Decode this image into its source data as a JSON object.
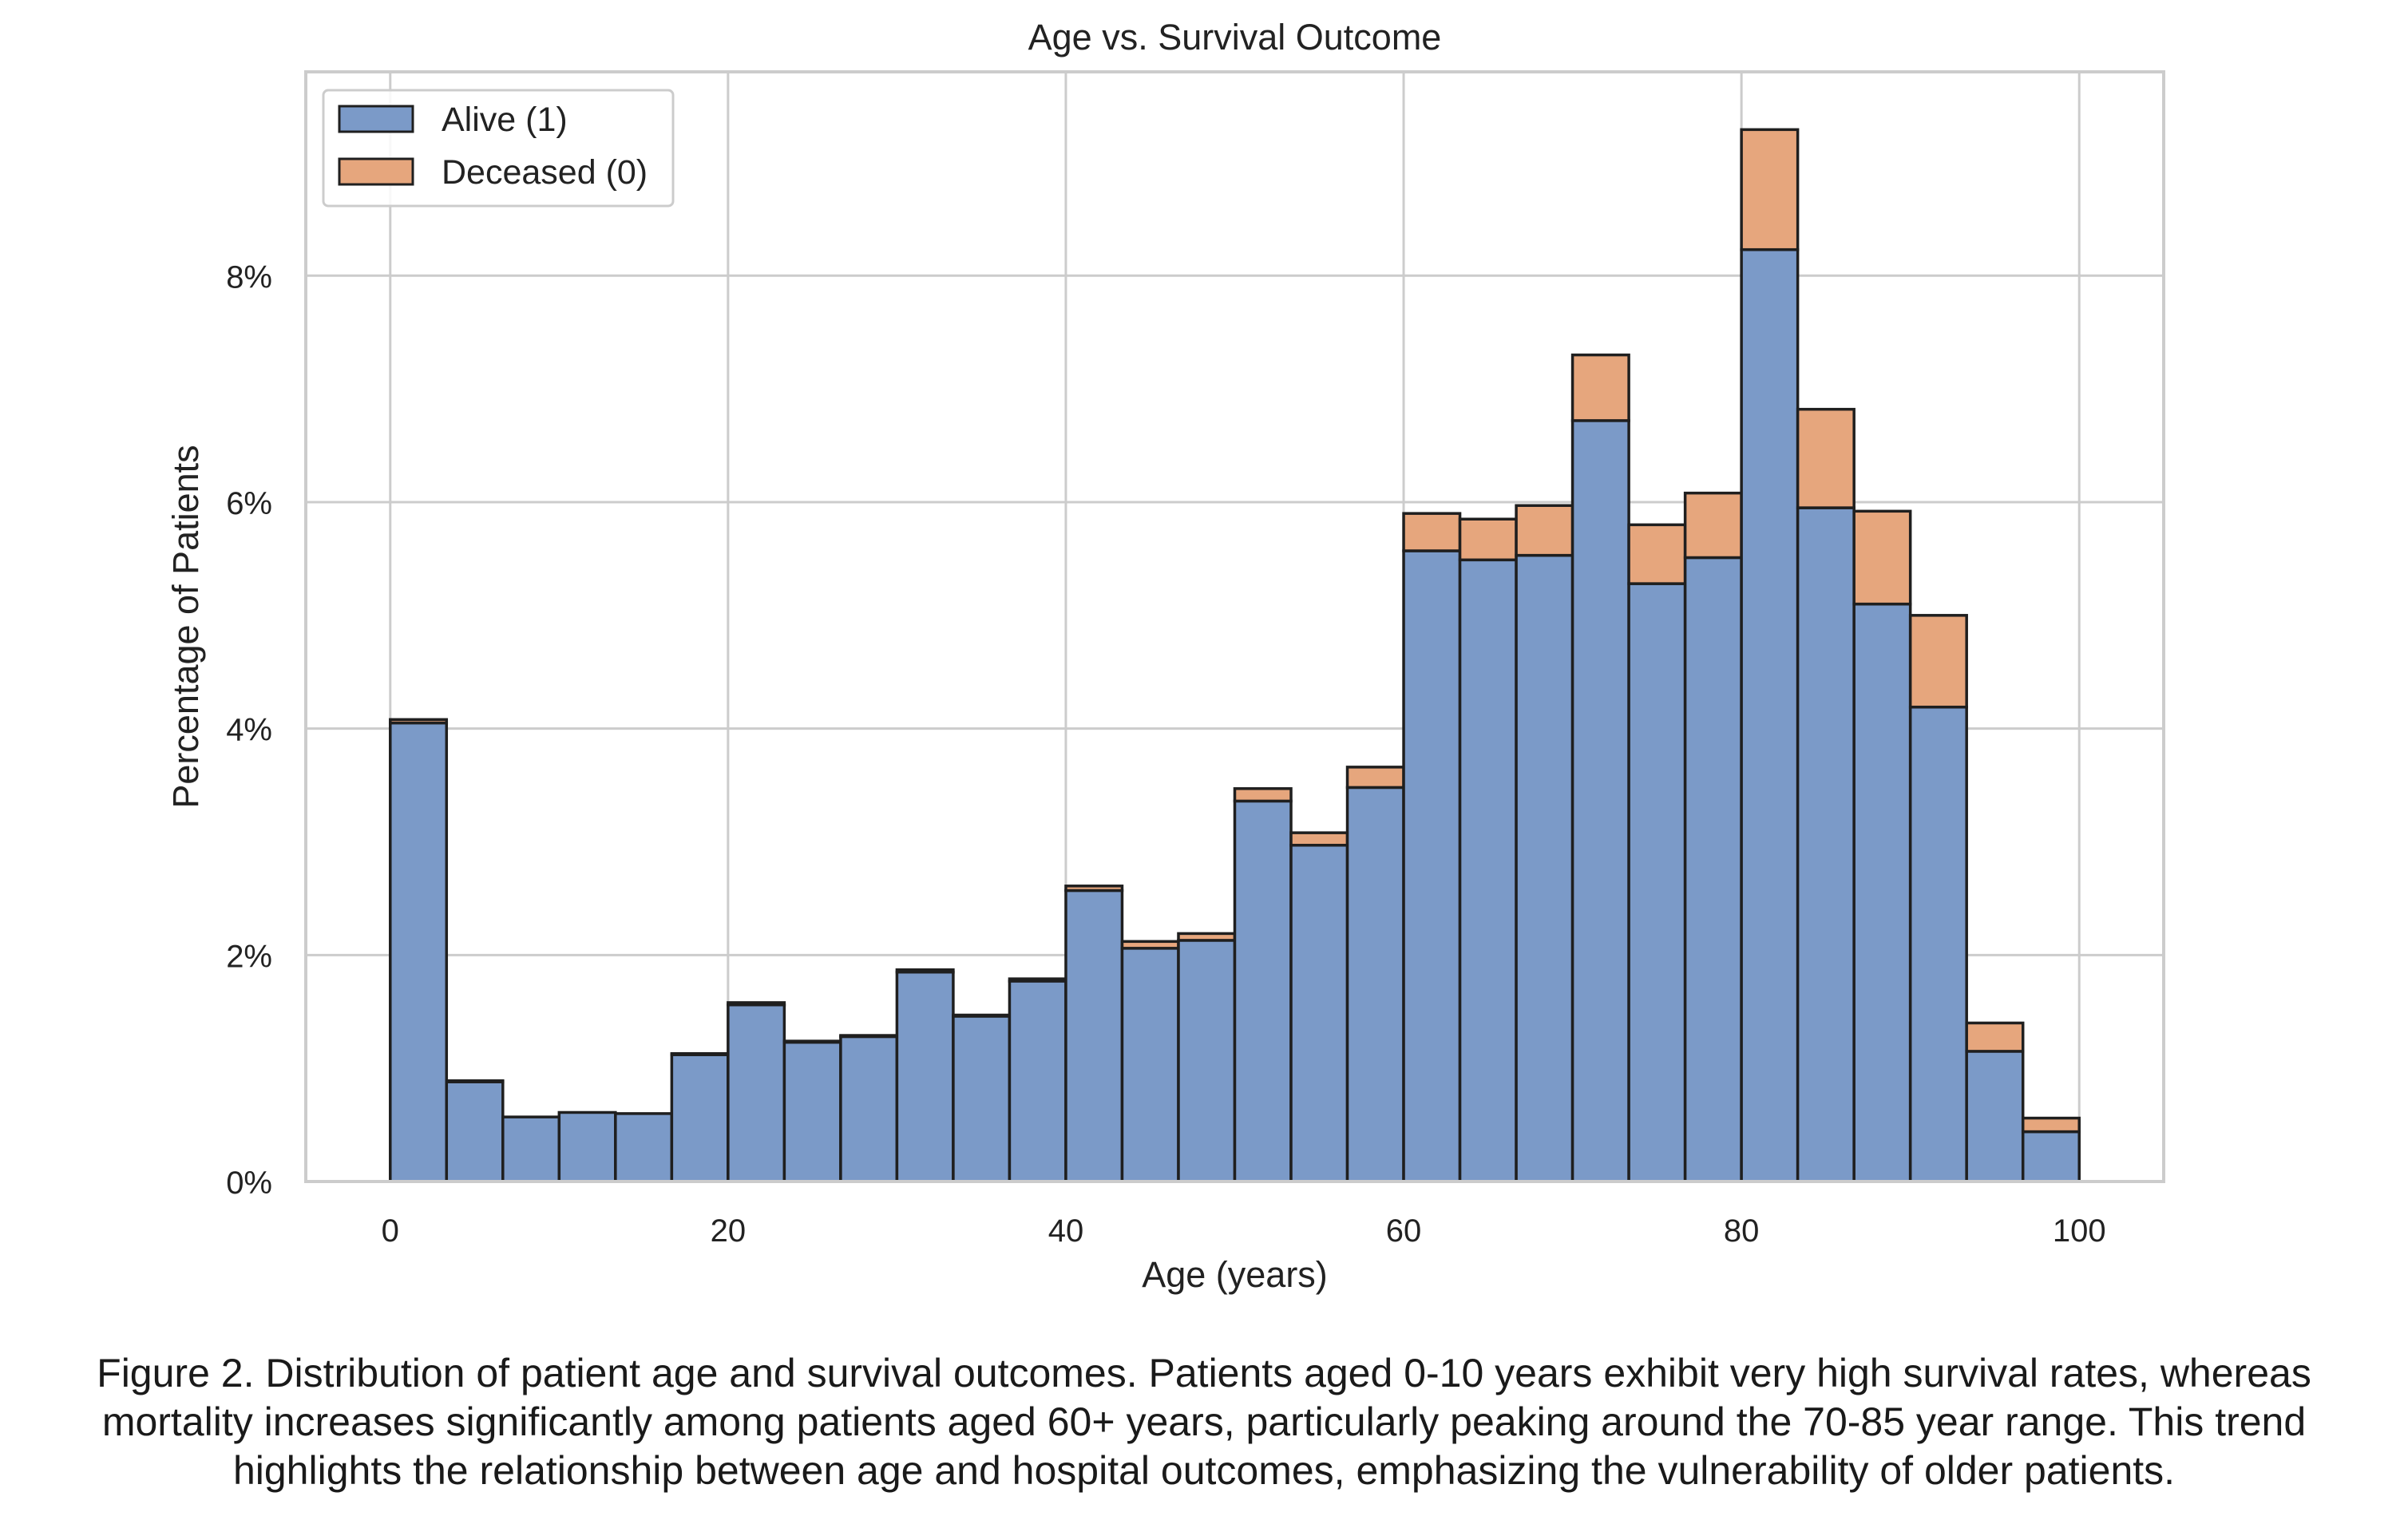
{
  "chart_data": {
    "type": "bar",
    "stacked": true,
    "title": "Age vs. Survival Outcome",
    "xlabel": "Age (years)",
    "ylabel": "Percentage of Patients",
    "xlim": [
      -5,
      105
    ],
    "ylim": [
      0,
      9.8
    ],
    "x_ticks": [
      0,
      20,
      40,
      60,
      80,
      100
    ],
    "x_tick_labels": [
      "0",
      "20",
      "40",
      "60",
      "80",
      "100"
    ],
    "y_ticks": [
      0,
      2,
      4,
      6,
      8
    ],
    "y_tick_labels": [
      "0%",
      "2%",
      "4%",
      "6%",
      "8%"
    ],
    "grid": true,
    "legend_position": "top-left",
    "bin_edges": [
      0,
      3.333,
      6.667,
      10,
      13.333,
      16.667,
      20,
      23.333,
      26.667,
      30,
      33.333,
      36.667,
      40,
      43.333,
      46.667,
      50,
      53.333,
      56.667,
      60,
      63.333,
      66.667,
      70,
      73.333,
      76.667,
      80,
      83.333,
      86.667,
      90,
      93.333,
      96.667,
      100
    ],
    "series": [
      {
        "name": "Alive (1)",
        "color": "#7b9ac8",
        "values": [
          4.05,
          0.88,
          0.57,
          0.61,
          0.6,
          1.12,
          1.56,
          1.23,
          1.28,
          1.85,
          1.46,
          1.77,
          2.57,
          2.06,
          2.13,
          3.36,
          2.97,
          3.48,
          5.57,
          5.49,
          5.53,
          6.72,
          5.28,
          5.51,
          8.23,
          5.95,
          5.1,
          4.19,
          1.15,
          0.44
        ]
      },
      {
        "name": "Deceased (0)",
        "color": "#e6a67d",
        "values": [
          0.03,
          0.01,
          0.0,
          0.0,
          0.0,
          0.01,
          0.02,
          0.01,
          0.01,
          0.02,
          0.01,
          0.02,
          0.04,
          0.06,
          0.06,
          0.11,
          0.11,
          0.18,
          0.33,
          0.36,
          0.44,
          0.58,
          0.52,
          0.57,
          1.06,
          0.87,
          0.82,
          0.81,
          0.25,
          0.12
        ]
      }
    ]
  },
  "caption": {
    "line1": "Figure 2. Distribution of patient age and survival outcomes. Patients aged 0-10 years exhibit very high survival rates, whereas",
    "line2": "mortality increases significantly among patients aged 60+ years, particularly peaking around the 70-85 year range. This trend",
    "line3": "highlights the relationship between age and hospital outcomes, emphasizing the vulnerability of older patients."
  }
}
